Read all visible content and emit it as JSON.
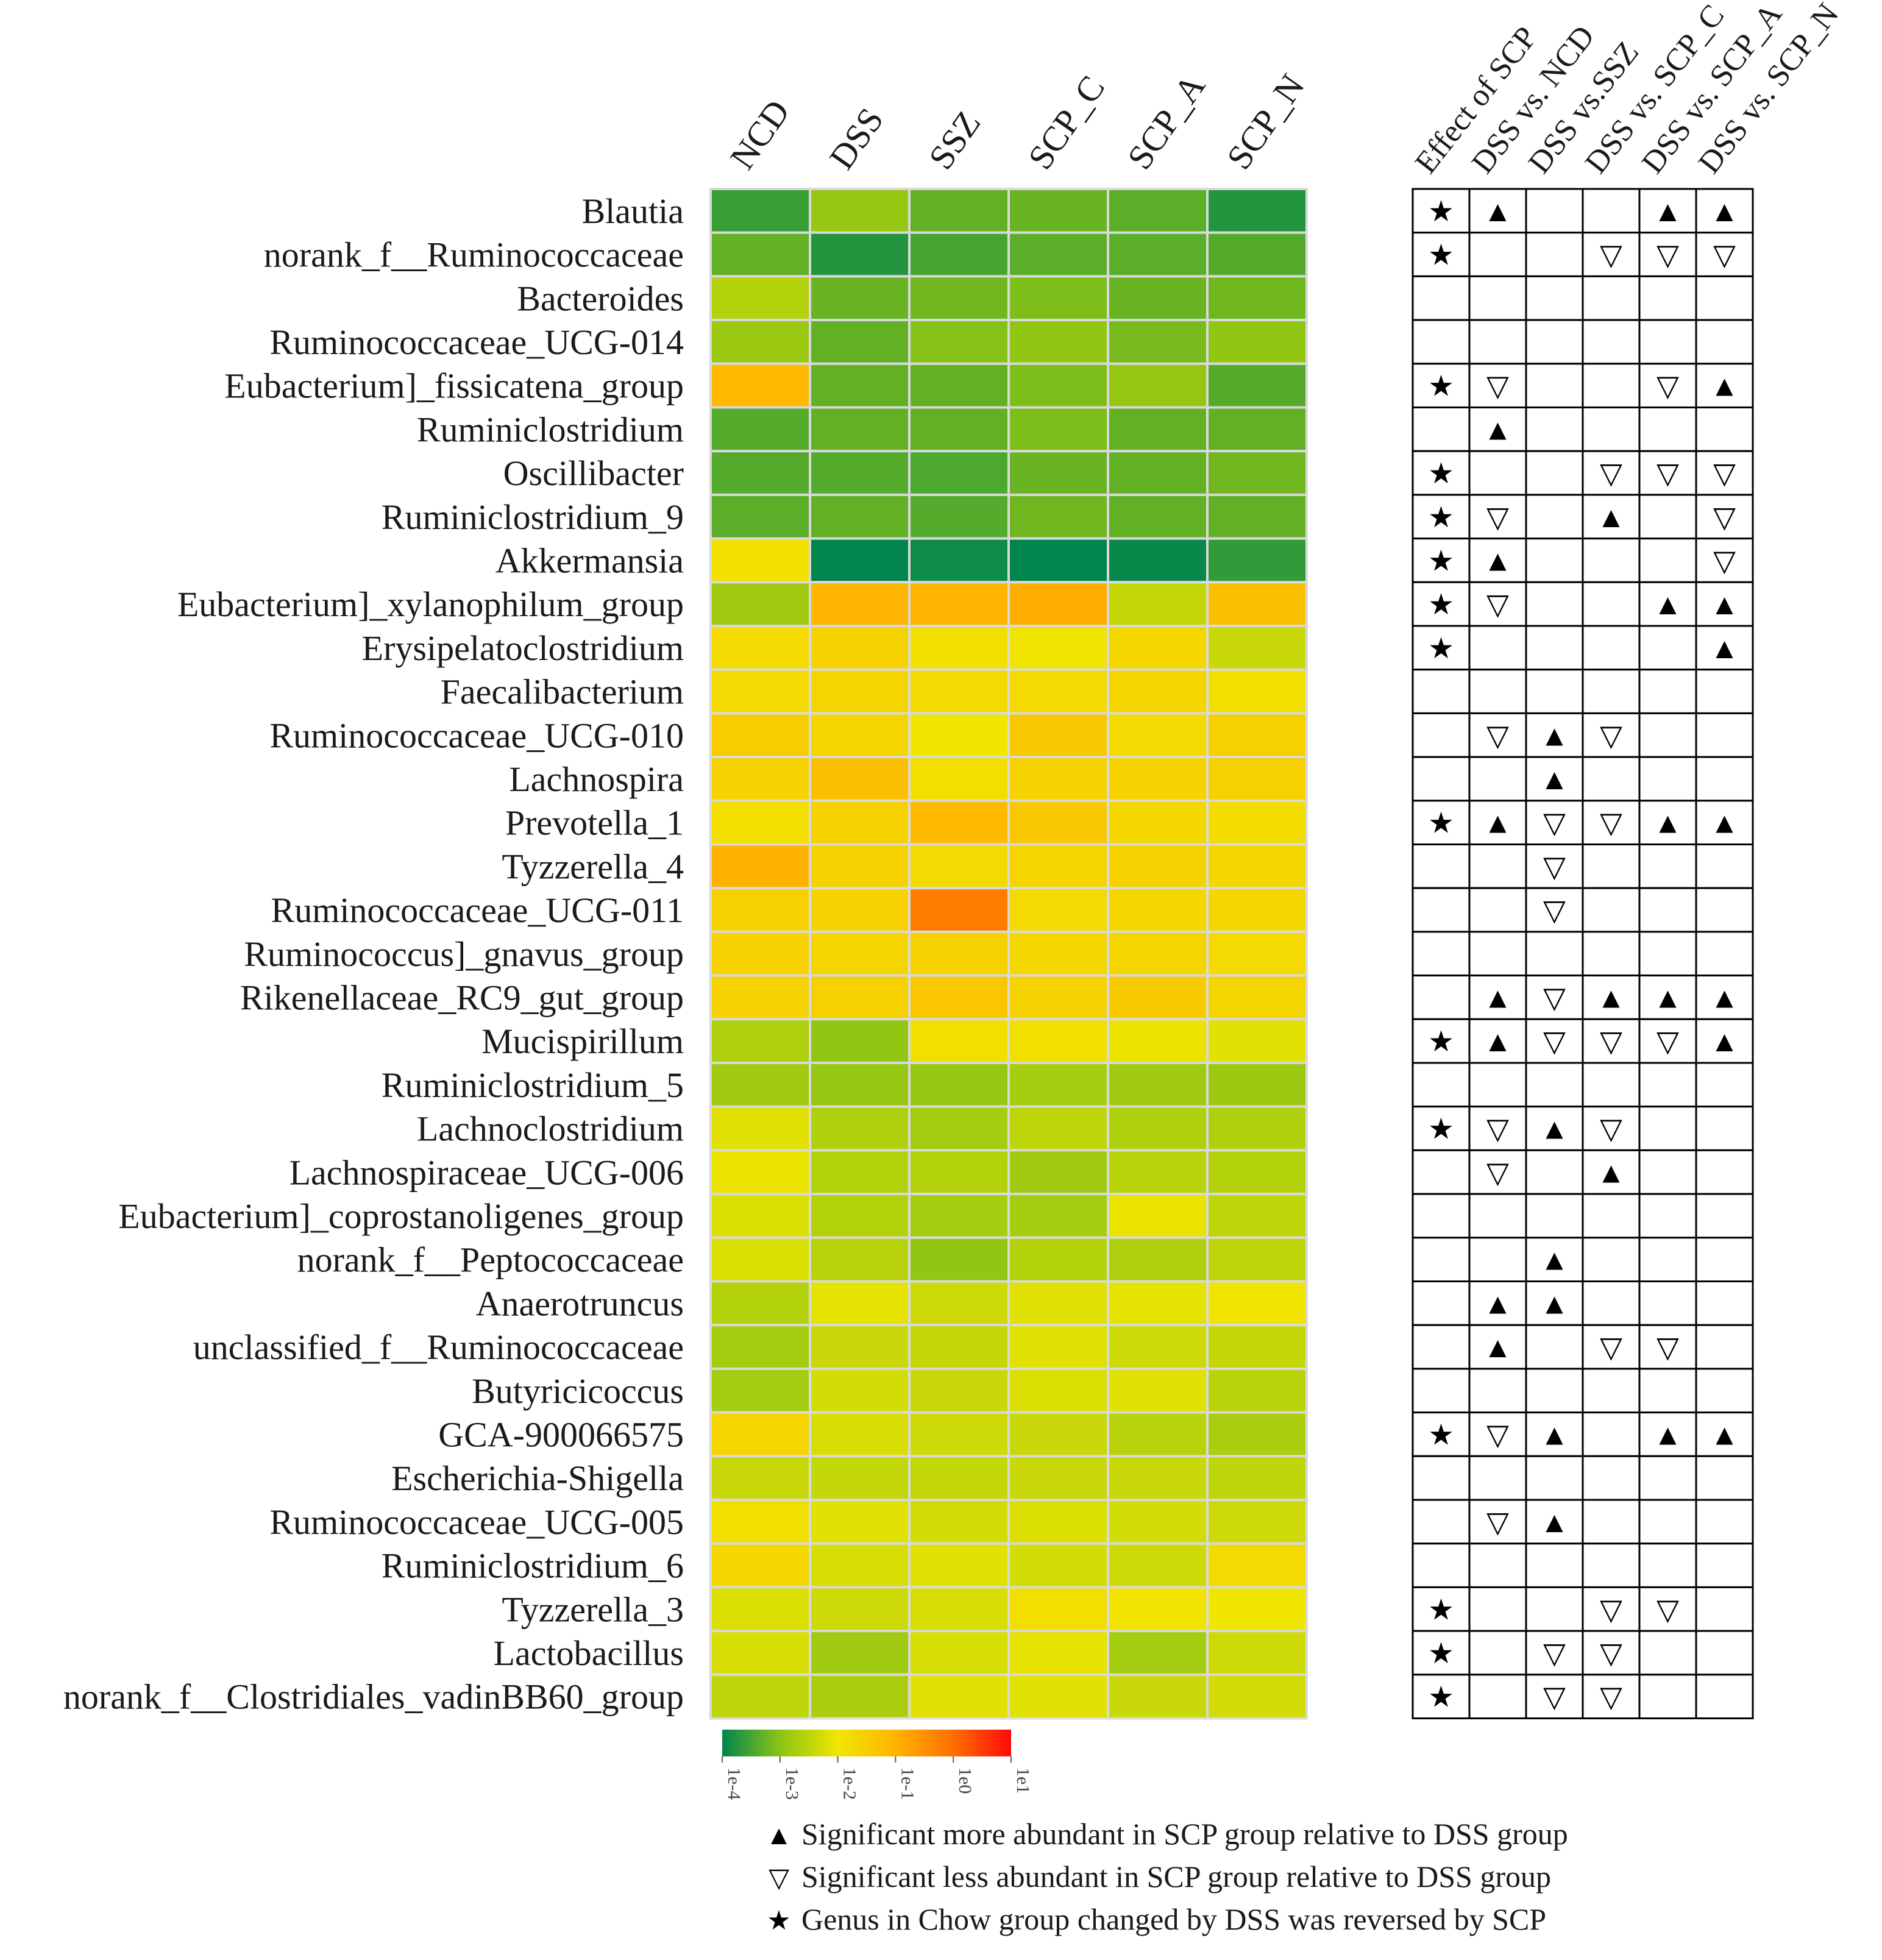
{
  "chart_data": {
    "type": "heatmap",
    "title": "",
    "columns": [
      "NCD",
      "DSS",
      "SSZ",
      "SCP_C",
      "SCP_A",
      "SCP_N"
    ],
    "rows": [
      "Blautia",
      "norank_f__Ruminococcaceae",
      "Bacteroides",
      "Ruminococcaceae_UCG-014",
      "Eubacterium]_fissicatena_group",
      "Ruminiclostridium",
      "Oscillibacter",
      "Ruminiclostridium_9",
      "Akkermansia",
      "Eubacterium]_xylanophilum_group",
      "Erysipelatoclostridium",
      "Faecalibacterium",
      "Ruminococcaceae_UCG-010",
      "Lachnospira",
      "Prevotella_1",
      "Tyzzerella_4",
      "Ruminococcaceae_UCG-011",
      "Ruminococcus]_gnavus_group",
      "Rikenellaceae_RC9_gut_group",
      "Mucispirillum",
      "Ruminiclostridium_5",
      "Lachnoclostridium",
      "Lachnospiraceae_UCG-006",
      "Eubacterium]_coprostanoligenes_group",
      "norank_f__Peptococcaceae",
      "Anaerotruncus",
      "unclassified_f__Ruminococcaceae",
      "Butyricicoccus",
      "GCA-900066575",
      "Escherichia-Shigella",
      "Ruminococcaceae_UCG-005",
      "Ruminiclostridium_6",
      "Tyzzerella_3",
      "Lactobacillus",
      "norank_f__Clostridiales_vadinBB60_group"
    ],
    "values": [
      [
        -3.6,
        -2.9,
        -3.3,
        -3.25,
        -3.35,
        -3.75
      ],
      [
        -3.3,
        -3.75,
        -3.5,
        -3.35,
        -3.35,
        -3.4
      ],
      [
        -2.6,
        -3.25,
        -3.2,
        -3.1,
        -3.25,
        -3.2
      ],
      [
        -2.85,
        -3.3,
        -3.05,
        -2.95,
        -3.15,
        -2.95
      ],
      [
        -1.1,
        -3.3,
        -3.3,
        -3.1,
        -2.9,
        -3.4
      ],
      [
        -3.4,
        -3.3,
        -3.3,
        -3.1,
        -3.3,
        -3.3
      ],
      [
        -3.4,
        -3.4,
        -3.45,
        -3.25,
        -3.3,
        -3.2
      ],
      [
        -3.35,
        -3.3,
        -3.4,
        -3.2,
        -3.3,
        -3.3
      ],
      [
        -1.9,
        -4.0,
        -3.9,
        -4.0,
        -3.95,
        -3.65
      ],
      [
        -2.8,
        -1.0,
        -1.0,
        -0.9,
        -2.45,
        -1.25
      ],
      [
        -1.75,
        -1.6,
        -1.9,
        -1.95,
        -1.7,
        -2.4
      ],
      [
        -1.75,
        -1.65,
        -1.75,
        -1.75,
        -1.65,
        -1.85
      ],
      [
        -1.5,
        -1.65,
        -2.0,
        -1.4,
        -1.75,
        -1.55
      ],
      [
        -1.6,
        -1.2,
        -1.85,
        -1.6,
        -1.6,
        -1.55
      ],
      [
        -1.85,
        -1.55,
        -1.1,
        -1.4,
        -1.7,
        -1.8
      ],
      [
        -0.95,
        -1.6,
        -1.75,
        -1.65,
        -1.6,
        -1.7
      ],
      [
        -1.55,
        -1.6,
        -0.2,
        -1.75,
        -1.7,
        -1.7
      ],
      [
        -1.6,
        -1.65,
        -1.55,
        -1.7,
        -1.65,
        -1.75
      ],
      [
        -1.6,
        -1.55,
        -1.35,
        -1.6,
        -1.45,
        -1.65
      ],
      [
        -2.65,
        -2.95,
        -1.85,
        -1.9,
        -2.05,
        -2.15
      ],
      [
        -2.8,
        -2.9,
        -2.9,
        -2.75,
        -2.8,
        -2.85
      ],
      [
        -2.15,
        -2.65,
        -2.75,
        -2.5,
        -2.65,
        -2.65
      ],
      [
        -2.05,
        -2.6,
        -2.6,
        -2.8,
        -2.55,
        -2.6
      ],
      [
        -2.2,
        -2.6,
        -2.75,
        -2.75,
        -2.05,
        -2.5
      ],
      [
        -2.2,
        -2.55,
        -2.95,
        -2.6,
        -2.65,
        -2.5
      ],
      [
        -2.6,
        -2.1,
        -2.35,
        -2.15,
        -2.1,
        -1.95
      ],
      [
        -2.75,
        -2.4,
        -2.45,
        -2.15,
        -2.35,
        -2.45
      ],
      [
        -2.75,
        -2.3,
        -2.4,
        -2.2,
        -2.15,
        -2.55
      ],
      [
        -1.65,
        -2.25,
        -2.35,
        -2.4,
        -2.55,
        -2.7
      ],
      [
        -2.4,
        -2.45,
        -2.45,
        -2.4,
        -2.4,
        -2.5
      ],
      [
        -1.9,
        -2.15,
        -2.3,
        -2.2,
        -2.3,
        -2.35
      ],
      [
        -1.7,
        -2.25,
        -2.15,
        -2.3,
        -2.35,
        -1.75
      ],
      [
        -2.2,
        -2.35,
        -2.25,
        -1.85,
        -1.95,
        -2.0
      ],
      [
        -2.25,
        -2.8,
        -2.25,
        -2.1,
        -2.75,
        -2.35
      ],
      [
        -2.5,
        -2.7,
        -2.15,
        -2.15,
        -2.4,
        -2.3
      ]
    ],
    "color_scale": {
      "min": -4,
      "max": 1,
      "colors": [
        "#00854d",
        "#8cc414",
        "#f0e600",
        "#ffb400",
        "#ff6e00",
        "#ff0a0a"
      ],
      "tick_labels": [
        "1e-4",
        "1e-3",
        "1e-2",
        "1e-1",
        "1e0",
        "1e1"
      ]
    },
    "significance": {
      "columns": [
        "Effect of SCP",
        "DSS vs. NCD",
        "DSS vs.SSZ",
        "DSS vs. SCP_C",
        "DSS vs. SCP_A",
        "DSS vs. SCP_N"
      ],
      "marks": [
        [
          "★",
          "▲",
          "",
          "",
          "▲",
          "▲"
        ],
        [
          "★",
          "",
          "",
          "▽",
          "▽",
          "▽"
        ],
        [
          "",
          "",
          "",
          "",
          "",
          ""
        ],
        [
          "",
          "",
          "",
          "",
          "",
          ""
        ],
        [
          "★",
          "▽",
          "",
          "",
          "▽",
          "▲"
        ],
        [
          "",
          "▲",
          "",
          "",
          "",
          ""
        ],
        [
          "★",
          "",
          "",
          "▽",
          "▽",
          "▽"
        ],
        [
          "★",
          "▽",
          "",
          "▲",
          "",
          "▽"
        ],
        [
          "★",
          "▲",
          "",
          "",
          "",
          "▽"
        ],
        [
          "★",
          "▽",
          "",
          "",
          "▲",
          "▲"
        ],
        [
          "★",
          "",
          "",
          "",
          "",
          "▲"
        ],
        [
          "",
          "",
          "",
          "",
          "",
          ""
        ],
        [
          "",
          "▽",
          "▲",
          "▽",
          "",
          ""
        ],
        [
          "",
          "",
          "▲",
          "",
          "",
          ""
        ],
        [
          "★",
          "▲",
          "▽",
          "▽",
          "▲",
          "▲"
        ],
        [
          "",
          "",
          "▽",
          "",
          "",
          ""
        ],
        [
          "",
          "",
          "▽",
          "",
          "",
          ""
        ],
        [
          "",
          "",
          "",
          "",
          "",
          ""
        ],
        [
          "",
          "▲",
          "▽",
          "▲",
          "▲",
          "▲"
        ],
        [
          "★",
          "▲",
          "▽",
          "▽",
          "▽",
          "▲"
        ],
        [
          "",
          "",
          "",
          "",
          "",
          ""
        ],
        [
          "★",
          "▽",
          "▲",
          "▽",
          "",
          ""
        ],
        [
          "",
          "▽",
          "",
          "▲",
          "",
          ""
        ],
        [
          "",
          "",
          "",
          "",
          "",
          ""
        ],
        [
          "",
          "",
          "▲",
          "",
          "",
          ""
        ],
        [
          "",
          "▲",
          "▲",
          "",
          "",
          ""
        ],
        [
          "",
          "▲",
          "",
          "▽",
          "▽",
          ""
        ],
        [
          "",
          "",
          "",
          "",
          "",
          ""
        ],
        [
          "★",
          "▽",
          "▲",
          "",
          "▲",
          "▲"
        ],
        [
          "",
          "",
          "",
          "",
          "",
          ""
        ],
        [
          "",
          "▽",
          "▲",
          "",
          "",
          ""
        ],
        [
          "",
          "",
          "",
          "",
          "",
          ""
        ],
        [
          "★",
          "",
          "",
          "▽",
          "▽",
          ""
        ],
        [
          "★",
          "",
          "▽",
          "▽",
          "",
          ""
        ],
        [
          "★",
          "",
          "▽",
          "▽",
          "",
          ""
        ]
      ]
    },
    "legend": [
      {
        "symbol": "▲",
        "text": "Significant more abundant in SCP group relative to DSS group"
      },
      {
        "symbol": "▽",
        "text": "Significant less abundant in SCP group relative to DSS group"
      },
      {
        "symbol": "★",
        "text": "Genus in Chow group changed by DSS was reversed by SCP"
      }
    ]
  }
}
